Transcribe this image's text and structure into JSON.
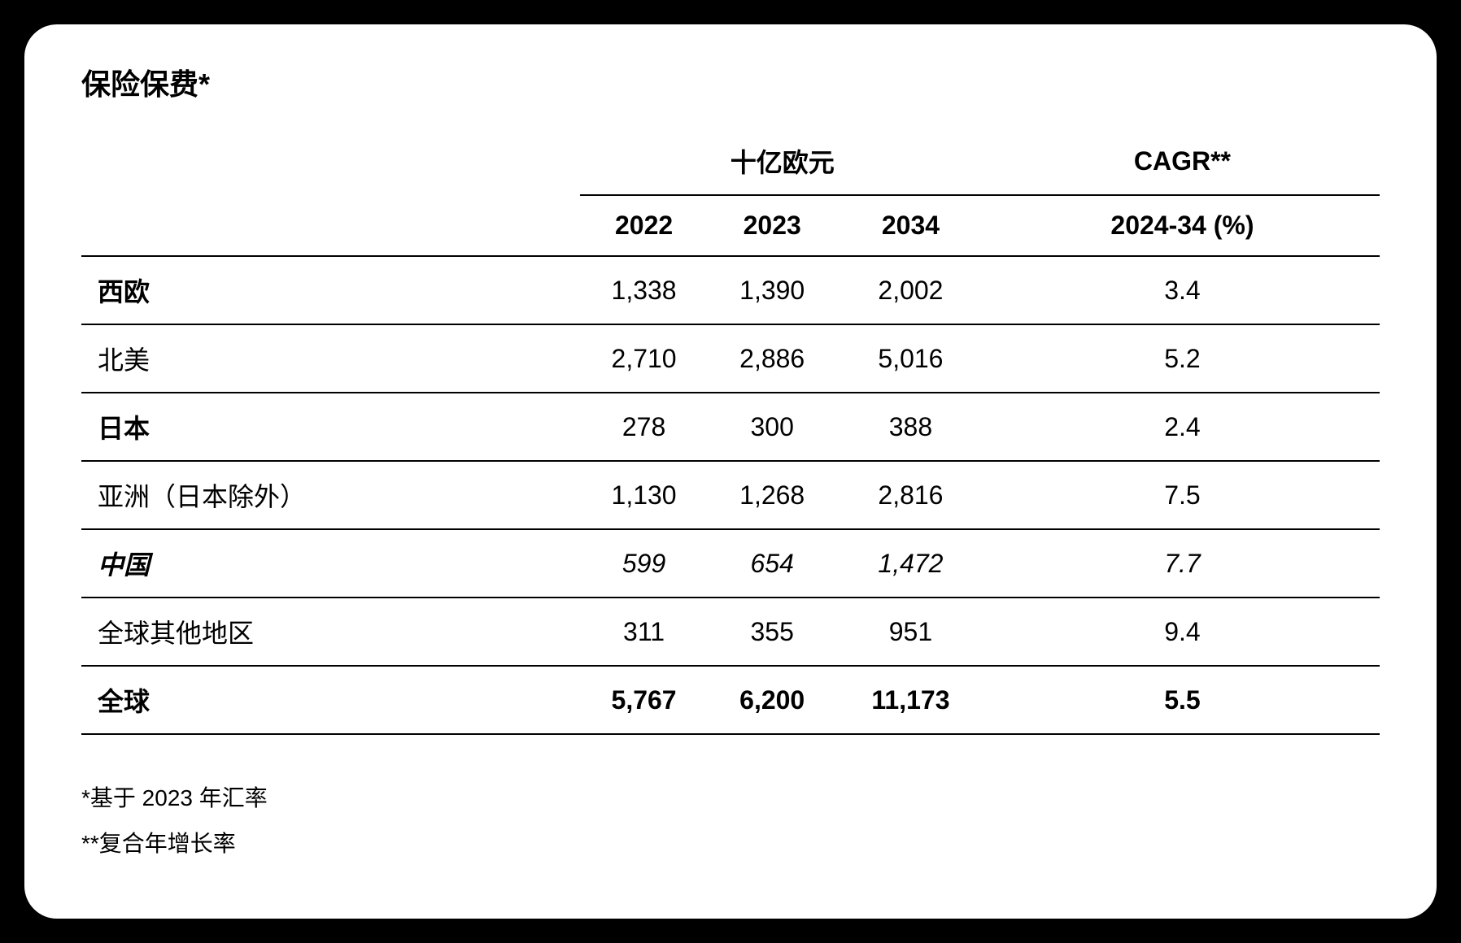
{
  "title": "保险保费*",
  "table": {
    "group_headers": {
      "empty": "",
      "currency": "十亿欧元",
      "cagr": "CAGR**"
    },
    "columns": {
      "region": "",
      "y2022": "2022",
      "y2023": "2023",
      "y2034": "2034",
      "cagr_period": "2024-34 (%)"
    },
    "rows": [
      {
        "region": "西欧",
        "y2022": "1,338",
        "y2023": "1,390",
        "y2034": "2,002",
        "cagr": "3.4",
        "bold_label": true,
        "italic": false
      },
      {
        "region": "北美",
        "y2022": "2,710",
        "y2023": "2,886",
        "y2034": "5,016",
        "cagr": "5.2",
        "bold_label": false,
        "italic": false
      },
      {
        "region": "日本",
        "y2022": "278",
        "y2023": "300",
        "y2034": "388",
        "cagr": "2.4",
        "bold_label": true,
        "italic": false
      },
      {
        "region": "亚洲（日本除外）",
        "y2022": "1,130",
        "y2023": "1,268",
        "y2034": "2,816",
        "cagr": "7.5",
        "bold_label": false,
        "italic": false
      },
      {
        "region": "中国",
        "y2022": "599",
        "y2023": "654",
        "y2034": "1,472",
        "cagr": "7.7",
        "bold_label": true,
        "italic": true
      },
      {
        "region": "全球其他地区",
        "y2022": "311",
        "y2023": "355",
        "y2034": "951",
        "cagr": "9.4",
        "bold_label": false,
        "italic": false
      }
    ],
    "total": {
      "region": "全球",
      "y2022": "5,767",
      "y2023": "6,200",
      "y2034": "11,173",
      "cagr": "5.5"
    }
  },
  "footnotes": {
    "note1": "*基于 2023 年汇率",
    "note2": "**复合年增长率"
  },
  "styling": {
    "background_color": "#000000",
    "card_background": "#ffffff",
    "text_color": "#000000",
    "border_color": "#000000",
    "border_radius": 40,
    "title_fontsize": 36,
    "table_fontsize": 32,
    "footnote_fontsize": 28,
    "border_width": 2
  }
}
